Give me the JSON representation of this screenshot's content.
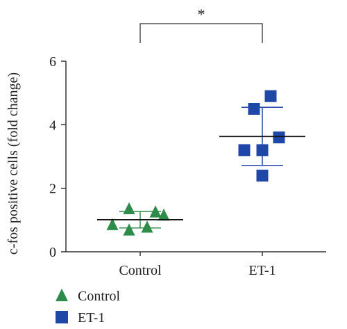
{
  "chart_data": {
    "type": "scatter",
    "title": "",
    "xlabel": "",
    "ylabel": "c-fos positive cells (fold change)",
    "categories": [
      "Control",
      "ET-1"
    ],
    "ylim": [
      0,
      6
    ],
    "yticks": [
      0,
      2,
      4,
      6
    ],
    "grid": false,
    "legend_position": "bottom-left",
    "significance": {
      "label": "*",
      "between": [
        "Control",
        "ET-1"
      ]
    },
    "series": [
      {
        "name": "Control",
        "marker": "triangle",
        "color": "#2e8b4a",
        "category": "Control",
        "points": [
          0.85,
          1.35,
          0.68,
          0.77,
          1.25,
          1.15
        ],
        "mean": 1.01,
        "sd_low": 0.75,
        "sd_high": 1.27
      },
      {
        "name": "ET-1",
        "marker": "square",
        "color": "#1f47a8",
        "category": "ET-1",
        "points": [
          4.9,
          4.5,
          3.6,
          3.2,
          3.2,
          2.4
        ],
        "mean": 3.63,
        "sd_low": 2.72,
        "sd_high": 4.55
      }
    ]
  }
}
